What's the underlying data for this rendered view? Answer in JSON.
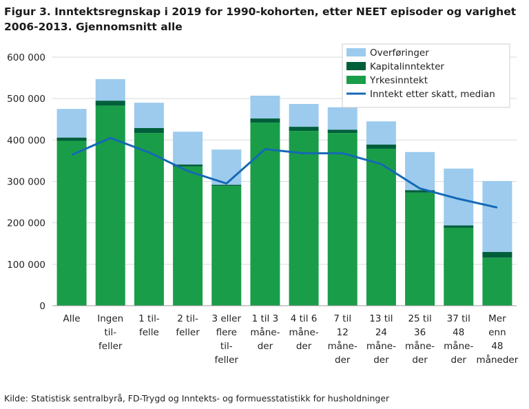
{
  "chart_data": {
    "type": "bar",
    "stacked": true,
    "title": "Figur 3. Inntektsregnskap i 2019 for 1990-kohorten, etter NEET episoder og varighet 2006-2013. Gjennomsnitt alle",
    "source": "Kilde: Statistisk sentralbyrå, FD-Trygd og Inntekts- og formuesstatistikk for husholdninger",
    "categories": [
      [
        "Alle"
      ],
      [
        "Ingen",
        "til-",
        "feller"
      ],
      [
        "1 til-",
        "felle"
      ],
      [
        "2 til-",
        "feller"
      ],
      [
        "3 eller",
        "flere",
        "til-",
        "feller"
      ],
      [
        "1 til 3",
        "måne-",
        "der"
      ],
      [
        "4 til 6",
        "måne-",
        "der"
      ],
      [
        "7 til",
        "12",
        "måne-",
        "der"
      ],
      [
        "13 til",
        "24",
        "måne-",
        "der"
      ],
      [
        "25 til",
        "36",
        "måne-",
        "der"
      ],
      [
        "37 til",
        "48",
        "måne-",
        "der"
      ],
      [
        "Mer",
        "enn",
        "48",
        "måneder"
      ]
    ],
    "series": [
      {
        "name": "Yrkesinntekt",
        "color": "#1a9d49",
        "values": [
          398000,
          483000,
          417000,
          336000,
          289000,
          442000,
          422000,
          417000,
          379000,
          273000,
          188000,
          116000
        ]
      },
      {
        "name": "Kapitalinntekter",
        "color": "#005f3b",
        "values": [
          8000,
          12000,
          12000,
          5000,
          3000,
          10000,
          10000,
          8000,
          10000,
          6000,
          6000,
          14000
        ]
      },
      {
        "name": "Overføringer",
        "color": "#9ccbee",
        "values": [
          69000,
          52000,
          61000,
          79000,
          85000,
          55000,
          55000,
          54000,
          56000,
          92000,
          137000,
          171000
        ]
      },
      {
        "name": "Inntekt etter skatt, median",
        "type": "line",
        "color": "#1469b4",
        "values": [
          364000,
          405000,
          370000,
          325000,
          295000,
          378000,
          368000,
          368000,
          342000,
          283000,
          258000,
          237000
        ]
      }
    ],
    "ylim": [
      0,
      600000
    ],
    "yticks": [
      0,
      {
        "value": 100000,
        "label": "100 000"
      },
      {
        "value": 200000,
        "label": "200 000"
      },
      {
        "value": 300000,
        "label": "300 000"
      },
      {
        "value": 400000,
        "label": "400 000"
      },
      {
        "value": 500000,
        "label": "500 000"
      },
      {
        "value": 600000,
        "label": "600 000"
      }
    ],
    "grid": true,
    "legend": "top-right"
  }
}
